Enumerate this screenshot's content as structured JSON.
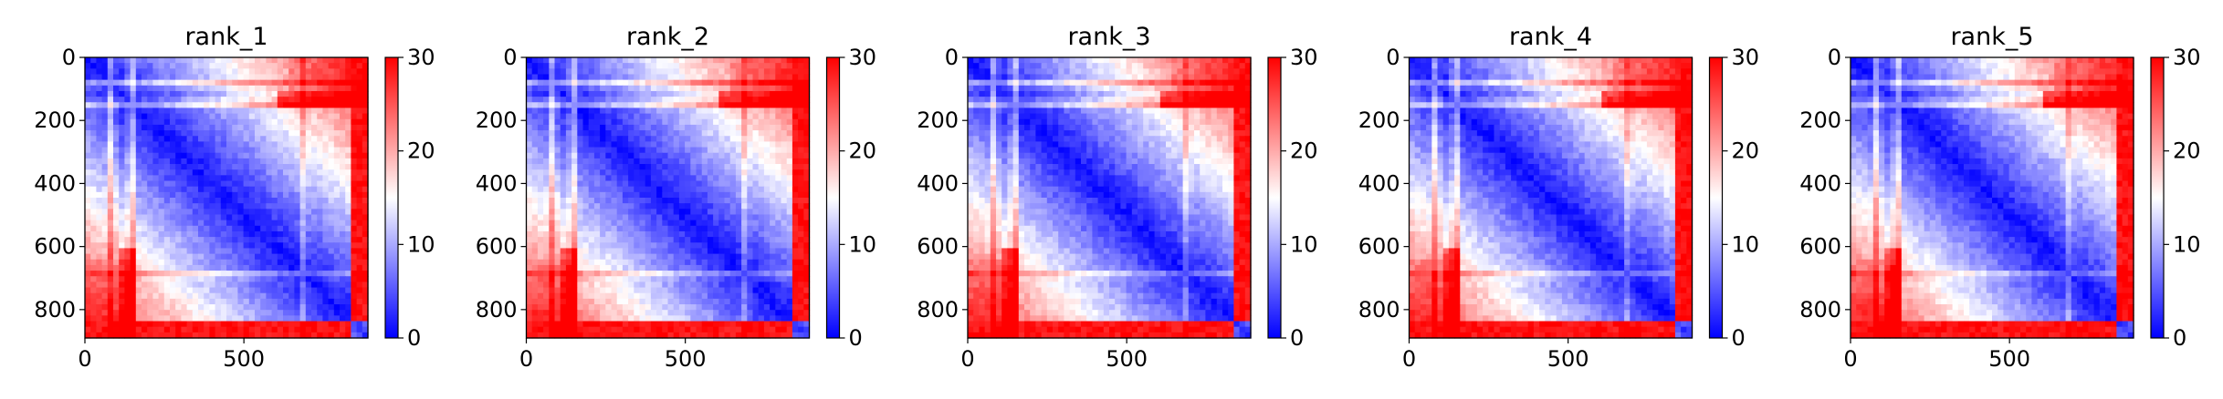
{
  "chart_data": [
    {
      "type": "heatmap",
      "title": "rank_1",
      "xlim": [
        0,
        890
      ],
      "ylim": [
        890,
        0
      ],
      "xticks": [
        0,
        500
      ],
      "xtick_labels": [
        "0",
        "500"
      ],
      "yticks": [
        0,
        200,
        400,
        600,
        800
      ],
      "ytick_labels": [
        "0",
        "200",
        "400",
        "600",
        "800"
      ],
      "colorbar": {
        "vmin": 0,
        "vmax": 30,
        "ticks": [
          0,
          10,
          20,
          30
        ],
        "tick_labels": [
          "0",
          "10",
          "20",
          "30"
        ],
        "colormap": "bwr"
      },
      "domain_boundaries": [
        85,
        145,
        690,
        830
      ],
      "value_range": [
        0,
        30
      ]
    },
    {
      "type": "heatmap",
      "title": "rank_2",
      "xlim": [
        0,
        890
      ],
      "ylim": [
        890,
        0
      ],
      "xticks": [
        0,
        500
      ],
      "xtick_labels": [
        "0",
        "500"
      ],
      "yticks": [
        0,
        200,
        400,
        600,
        800
      ],
      "ytick_labels": [
        "0",
        "200",
        "400",
        "600",
        "800"
      ],
      "colorbar": {
        "vmin": 0,
        "vmax": 30,
        "ticks": [
          0,
          10,
          20,
          30
        ],
        "tick_labels": [
          "0",
          "10",
          "20",
          "30"
        ],
        "colormap": "bwr"
      },
      "domain_boundaries": [
        85,
        145,
        690,
        830
      ],
      "value_range": [
        0,
        30
      ]
    },
    {
      "type": "heatmap",
      "title": "rank_3",
      "xlim": [
        0,
        890
      ],
      "ylim": [
        890,
        0
      ],
      "xticks": [
        0,
        500
      ],
      "xtick_labels": [
        "0",
        "500"
      ],
      "yticks": [
        0,
        200,
        400,
        600,
        800
      ],
      "ytick_labels": [
        "0",
        "200",
        "400",
        "600",
        "800"
      ],
      "colorbar": {
        "vmin": 0,
        "vmax": 30,
        "ticks": [
          0,
          10,
          20,
          30
        ],
        "tick_labels": [
          "0",
          "10",
          "20",
          "30"
        ],
        "colormap": "bwr"
      },
      "domain_boundaries": [
        85,
        145,
        690,
        830
      ],
      "value_range": [
        0,
        30
      ]
    },
    {
      "type": "heatmap",
      "title": "rank_4",
      "xlim": [
        0,
        890
      ],
      "ylim": [
        890,
        0
      ],
      "xticks": [
        0,
        500
      ],
      "xtick_labels": [
        "0",
        "500"
      ],
      "yticks": [
        0,
        200,
        400,
        600,
        800
      ],
      "ytick_labels": [
        "0",
        "200",
        "400",
        "600",
        "800"
      ],
      "colorbar": {
        "vmin": 0,
        "vmax": 30,
        "ticks": [
          0,
          10,
          20,
          30
        ],
        "tick_labels": [
          "0",
          "10",
          "20",
          "30"
        ],
        "colormap": "bwr"
      },
      "domain_boundaries": [
        85,
        145,
        690,
        830
      ],
      "value_range": [
        0,
        30
      ]
    },
    {
      "type": "heatmap",
      "title": "rank_5",
      "xlim": [
        0,
        890
      ],
      "ylim": [
        890,
        0
      ],
      "xticks": [
        0,
        500
      ],
      "xtick_labels": [
        "0",
        "500"
      ],
      "yticks": [
        0,
        200,
        400,
        600,
        800
      ],
      "ytick_labels": [
        "0",
        "200",
        "400",
        "600",
        "800"
      ],
      "colorbar": {
        "vmin": 0,
        "vmax": 30,
        "ticks": [
          0,
          10,
          20,
          30
        ],
        "tick_labels": [
          "0",
          "10",
          "20",
          "30"
        ],
        "colormap": "bwr"
      },
      "domain_boundaries": [
        85,
        145,
        690,
        830
      ],
      "value_range": [
        0,
        30
      ]
    }
  ],
  "colors": {
    "low": "#0000ff",
    "mid": "#ffffff",
    "high": "#ff0000",
    "axis": "#000000"
  }
}
